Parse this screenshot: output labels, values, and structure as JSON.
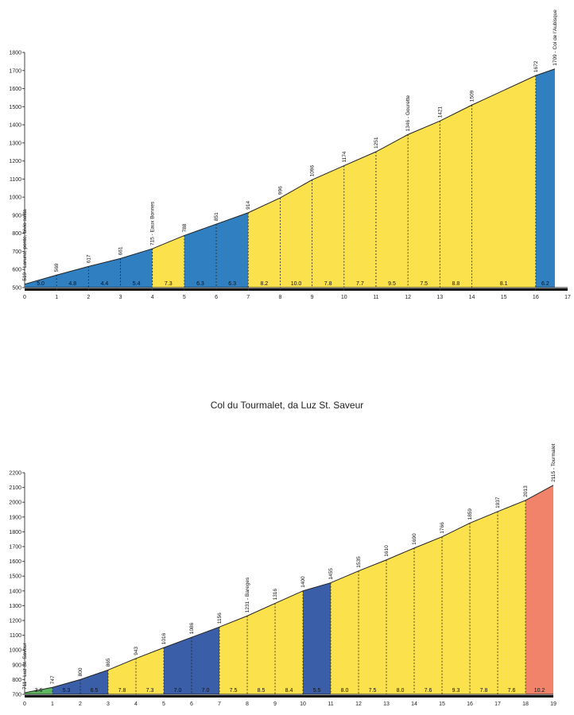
{
  "chart_data": [
    {
      "type": "area",
      "title": "",
      "xlabel": "",
      "ylabel": "",
      "xlim": [
        0,
        17
      ],
      "ylim": [
        500,
        1800
      ],
      "yticks": [
        500,
        600,
        700,
        800,
        900,
        1000,
        1100,
        1200,
        1300,
        1400,
        1500,
        1600,
        1700,
        1800
      ],
      "xticks": [
        0,
        1,
        2,
        3,
        4,
        5,
        6,
        7,
        8,
        9,
        10,
        11,
        12,
        13,
        14,
        15,
        16,
        17
      ],
      "points": [
        {
          "x": 0,
          "y": 519,
          "label": "519 - Laruns, ponte, bivio salita"
        },
        {
          "x": 1,
          "y": 569,
          "label": "569"
        },
        {
          "x": 2,
          "y": 617,
          "label": "617"
        },
        {
          "x": 3,
          "y": 661,
          "label": "661"
        },
        {
          "x": 4,
          "y": 715,
          "label": "715 - Eaux Bonnes"
        },
        {
          "x": 5,
          "y": 788,
          "label": "788"
        },
        {
          "x": 6,
          "y": 851,
          "label": "851"
        },
        {
          "x": 7,
          "y": 914,
          "label": "914"
        },
        {
          "x": 8,
          "y": 996,
          "label": "996"
        },
        {
          "x": 9,
          "y": 1096,
          "label": "1096"
        },
        {
          "x": 10,
          "y": 1174,
          "label": "1174"
        },
        {
          "x": 11,
          "y": 1251,
          "label": "1251"
        },
        {
          "x": 12,
          "y": 1346,
          "label": "1346 - Gourette"
        },
        {
          "x": 13,
          "y": 1421,
          "label": "1421"
        },
        {
          "x": 14,
          "y": 1509,
          "label": "1509"
        },
        {
          "x": 16,
          "y": 1672,
          "label": "1672"
        },
        {
          "x": 16.6,
          "y": 1709,
          "label": "1709 - Col de l'Aubisque"
        }
      ],
      "segments": [
        {
          "from": 0,
          "to": 1,
          "grade": "5.0",
          "color": "#2f7fc1"
        },
        {
          "from": 1,
          "to": 2,
          "grade": "4.8",
          "color": "#2f7fc1"
        },
        {
          "from": 2,
          "to": 3,
          "grade": "4.4",
          "color": "#2f7fc1"
        },
        {
          "from": 3,
          "to": 4,
          "grade": "5.4",
          "color": "#2f7fc1"
        },
        {
          "from": 4,
          "to": 5,
          "grade": "7.3",
          "color": "#fbe14b"
        },
        {
          "from": 5,
          "to": 6,
          "grade": "6.3",
          "color": "#2f7fc1"
        },
        {
          "from": 6,
          "to": 7,
          "grade": "6.3",
          "color": "#2f7fc1"
        },
        {
          "from": 7,
          "to": 8,
          "grade": "8.2",
          "color": "#fbe14b"
        },
        {
          "from": 8,
          "to": 9,
          "grade": "10.0",
          "color": "#fbe14b"
        },
        {
          "from": 9,
          "to": 10,
          "grade": "7.8",
          "color": "#fbe14b"
        },
        {
          "from": 10,
          "to": 11,
          "grade": "7.7",
          "color": "#fbe14b"
        },
        {
          "from": 11,
          "to": 12,
          "grade": "9.5",
          "color": "#fbe14b"
        },
        {
          "from": 12,
          "to": 13,
          "grade": "7.5",
          "color": "#fbe14b"
        },
        {
          "from": 13,
          "to": 14,
          "grade": "8.8",
          "color": "#fbe14b"
        },
        {
          "from": 14,
          "to": 16,
          "grade": "8.1",
          "color": "#fbe14b"
        },
        {
          "from": 16,
          "to": 16.6,
          "grade": "6.2",
          "color": "#2f7fc1"
        }
      ]
    },
    {
      "type": "area",
      "title": "Col du Tourmalet, da Luz St. Saveur",
      "xlabel": "",
      "ylabel": "",
      "xlim": [
        0,
        19
      ],
      "ylim": [
        700,
        2200
      ],
      "yticks": [
        700,
        800,
        900,
        1000,
        1100,
        1200,
        1300,
        1400,
        1500,
        1600,
        1700,
        1800,
        1900,
        2000,
        2100,
        2200
      ],
      "xticks": [
        0,
        1,
        2,
        3,
        4,
        5,
        6,
        7,
        8,
        9,
        10,
        11,
        12,
        13,
        14,
        15,
        16,
        17,
        18,
        19
      ],
      "points": [
        {
          "x": 0,
          "y": 711,
          "label": "711 - Luz St. Saveur"
        },
        {
          "x": 1,
          "y": 747,
          "label": "747"
        },
        {
          "x": 2,
          "y": 800,
          "label": "800"
        },
        {
          "x": 3,
          "y": 865,
          "label": "865"
        },
        {
          "x": 4,
          "y": 943,
          "label": "943"
        },
        {
          "x": 5,
          "y": 1016,
          "label": "1016"
        },
        {
          "x": 6,
          "y": 1086,
          "label": "1086"
        },
        {
          "x": 7,
          "y": 1156,
          "label": "1156"
        },
        {
          "x": 8,
          "y": 1231,
          "label": "1231 - Bareges"
        },
        {
          "x": 9,
          "y": 1316,
          "label": "1316"
        },
        {
          "x": 10,
          "y": 1400,
          "label": "1400"
        },
        {
          "x": 11,
          "y": 1455,
          "label": "1455"
        },
        {
          "x": 12,
          "y": 1535,
          "label": "1535"
        },
        {
          "x": 13,
          "y": 1610,
          "label": "1610"
        },
        {
          "x": 14,
          "y": 1690,
          "label": "1690"
        },
        {
          "x": 15,
          "y": 1766,
          "label": "1766"
        },
        {
          "x": 16,
          "y": 1859,
          "label": "1859"
        },
        {
          "x": 17,
          "y": 1937,
          "label": "1937"
        },
        {
          "x": 18,
          "y": 2013,
          "label": "2013"
        },
        {
          "x": 19,
          "y": 2115,
          "label": "2115 - Tourmalet"
        }
      ],
      "segments": [
        {
          "from": 0,
          "to": 1,
          "grade": "3.6",
          "color": "#5cb85c"
        },
        {
          "from": 1,
          "to": 2,
          "grade": "5.3",
          "color": "#3b5ea8"
        },
        {
          "from": 2,
          "to": 3,
          "grade": "6.5",
          "color": "#3b5ea8"
        },
        {
          "from": 3,
          "to": 4,
          "grade": "7.8",
          "color": "#fbe14b"
        },
        {
          "from": 4,
          "to": 5,
          "grade": "7.3",
          "color": "#fbe14b"
        },
        {
          "from": 5,
          "to": 6,
          "grade": "7.0",
          "color": "#3b5ea8"
        },
        {
          "from": 6,
          "to": 7,
          "grade": "7.0",
          "color": "#3b5ea8"
        },
        {
          "from": 7,
          "to": 8,
          "grade": "7.5",
          "color": "#fbe14b"
        },
        {
          "from": 8,
          "to": 9,
          "grade": "8.5",
          "color": "#fbe14b"
        },
        {
          "from": 9,
          "to": 10,
          "grade": "8.4",
          "color": "#fbe14b"
        },
        {
          "from": 10,
          "to": 11,
          "grade": "5.5",
          "color": "#3b5ea8"
        },
        {
          "from": 11,
          "to": 12,
          "grade": "8.0",
          "color": "#fbe14b"
        },
        {
          "from": 12,
          "to": 13,
          "grade": "7.5",
          "color": "#fbe14b"
        },
        {
          "from": 13,
          "to": 14,
          "grade": "8.0",
          "color": "#fbe14b"
        },
        {
          "from": 14,
          "to": 15,
          "grade": "7.6",
          "color": "#fbe14b"
        },
        {
          "from": 15,
          "to": 16,
          "grade": "9.3",
          "color": "#fbe14b"
        },
        {
          "from": 16,
          "to": 17,
          "grade": "7.8",
          "color": "#fbe14b"
        },
        {
          "from": 17,
          "to": 18,
          "grade": "7.6",
          "color": "#fbe14b"
        },
        {
          "from": 18,
          "to": 19,
          "grade": "10.2",
          "color": "#f0836a"
        }
      ]
    }
  ]
}
